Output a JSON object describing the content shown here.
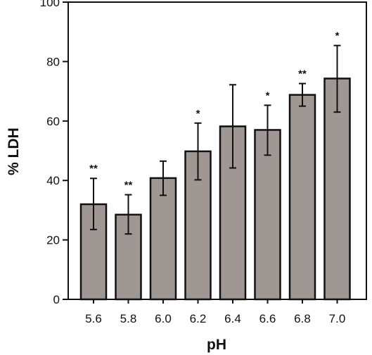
{
  "chart_data": {
    "type": "bar",
    "xlabel": "pH",
    "ylabel": "% LDH",
    "ylim": [
      0,
      100
    ],
    "yticks": [
      "0",
      "20",
      "40",
      "60",
      "80",
      "100"
    ],
    "grid": false,
    "categories": [
      "5.6",
      "5.8",
      "6.0",
      "6.2",
      "6.4",
      "6.6",
      "6.8",
      "7.0"
    ],
    "values": [
      32,
      28.5,
      40.8,
      49.8,
      58.2,
      57,
      68.8,
      74.3
    ],
    "error_low": [
      23.5,
      22,
      35,
      40.2,
      44.2,
      48.5,
      65,
      63
    ],
    "error_high": [
      40.7,
      35.2,
      46.5,
      59.3,
      72.2,
      65.3,
      72.6,
      85.4
    ],
    "significance": [
      "**",
      "**",
      "",
      "*",
      "",
      "*",
      "**",
      "*"
    ],
    "colors": {
      "bar_fill": "#9e9794",
      "bar_stroke": "#111111",
      "axis": "#111111"
    }
  }
}
